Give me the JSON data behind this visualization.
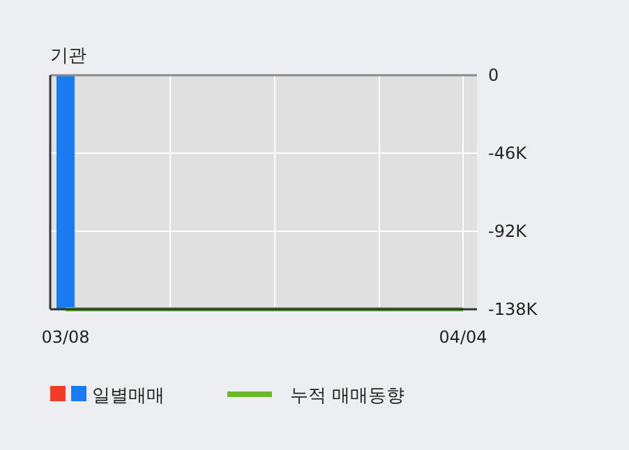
{
  "chart_data": {
    "type": "bar",
    "title": "기관",
    "categories": [
      "03/08",
      null,
      null,
      null,
      null,
      null,
      null,
      null,
      null,
      null,
      null,
      null,
      null,
      null,
      null,
      null,
      null,
      null,
      null,
      "04/04"
    ],
    "series": [
      {
        "name": "일별매매",
        "color": "#1a7af0",
        "values": [
          -138000,
          0,
          0,
          0,
          0,
          0,
          0,
          0,
          0,
          0,
          0,
          0,
          0,
          0,
          0,
          0,
          0,
          0,
          0,
          0
        ]
      },
      {
        "name": "누적 매매동향",
        "type": "line",
        "color": "#6ab82c",
        "values": [
          -138000,
          -138000,
          -138000,
          -138000,
          -138000,
          -138000,
          -138000,
          -138000,
          -138000,
          -138000,
          -138000,
          -138000,
          -138000,
          -138000,
          -138000,
          -138000,
          -138000,
          -138000,
          -138000,
          -138000
        ]
      }
    ],
    "ylim": [
      -138000,
      0
    ],
    "yticks": [
      {
        "value": 0,
        "label": "0"
      },
      {
        "value": -46000,
        "label": "-46K"
      },
      {
        "value": -92000,
        "label": "-92K"
      },
      {
        "value": -138000,
        "label": "-138K"
      }
    ],
    "grid": true,
    "legend": "bottom"
  }
}
